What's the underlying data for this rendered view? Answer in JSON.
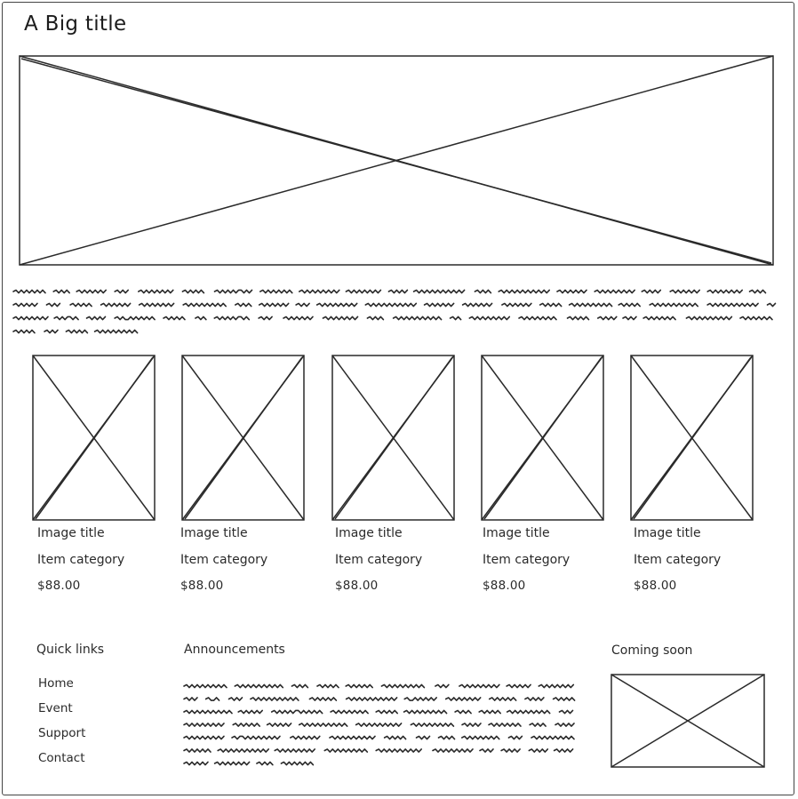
{
  "page": {
    "title": "A Big title"
  },
  "hero": {
    "image_icon": "image-placeholder-icon"
  },
  "products": [
    {
      "title": "Image title",
      "category": "Item category",
      "price": "$88.00"
    },
    {
      "title": "Image title",
      "category": "Item category",
      "price": "$88.00"
    },
    {
      "title": "Image title",
      "category": "Item category",
      "price": "$88.00"
    },
    {
      "title": "Image title",
      "category": "Item category",
      "price": "$88.00"
    },
    {
      "title": "Image title",
      "category": "Item category",
      "price": "$88.00"
    }
  ],
  "footer": {
    "quick_links": {
      "heading": "Quick links",
      "items": [
        "Home",
        "Event",
        "Support",
        "Contact"
      ]
    },
    "announcements": {
      "heading": "Announcements"
    },
    "coming_soon": {
      "heading": "Coming soon"
    }
  },
  "colors": {
    "stroke": "#2a2a2a",
    "background": "#ffffff"
  }
}
